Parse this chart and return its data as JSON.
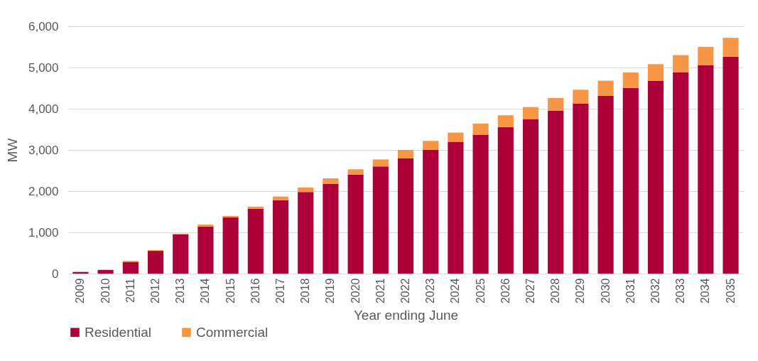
{
  "chart_data": {
    "type": "bar",
    "stacked": true,
    "xlabel": "Year ending June",
    "ylabel": "MW",
    "categories": [
      "2009",
      "2010",
      "2011",
      "2012",
      "2013",
      "2014",
      "2015",
      "2016",
      "2017",
      "2018",
      "2019",
      "2020",
      "2021",
      "2022",
      "2023",
      "2024",
      "2025",
      "2026",
      "2027",
      "2028",
      "2029",
      "2030",
      "2031",
      "2032",
      "2033",
      "2034",
      "2035"
    ],
    "series": [
      {
        "name": "Residential",
        "color": "#ad0039",
        "values": [
          40,
          90,
          280,
          550,
          950,
          1140,
          1360,
          1570,
          1780,
          1980,
          2180,
          2400,
          2600,
          2800,
          3000,
          3200,
          3370,
          3550,
          3750,
          3950,
          4130,
          4310,
          4500,
          4680,
          4880,
          5060,
          5260
        ]
      },
      {
        "name": "Commercial",
        "color": "#f79646",
        "values": [
          null,
          null,
          30,
          20,
          20,
          50,
          40,
          55,
          90,
          110,
          130,
          130,
          170,
          200,
          220,
          220,
          270,
          290,
          290,
          310,
          330,
          370,
          380,
          400,
          420,
          440,
          460
        ]
      }
    ],
    "ylim": [
      0,
      6000
    ],
    "yticks": [
      {
        "value": 0,
        "label": "0"
      },
      {
        "value": 1000,
        "label": "1,000"
      },
      {
        "value": 2000,
        "label": "2,000"
      },
      {
        "value": 3000,
        "label": "3,000"
      },
      {
        "value": 4000,
        "label": "4,000"
      },
      {
        "value": 5000,
        "label": "5,000"
      },
      {
        "value": 6000,
        "label": "6,000"
      }
    ],
    "grid": "y",
    "legend": "bottom"
  }
}
